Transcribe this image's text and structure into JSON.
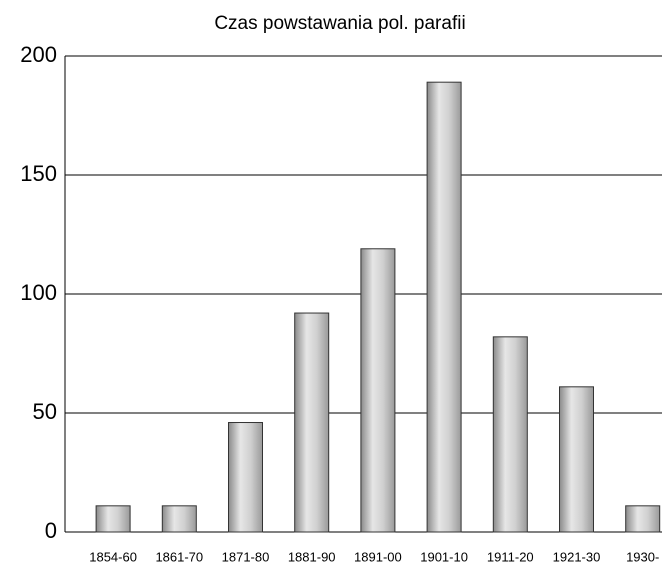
{
  "chart_data": {
    "type": "bar",
    "title": "Czas powstawania pol. parafii",
    "categories": [
      "1854-60",
      "1861-70",
      "1871-80",
      "1881-90",
      "1891-00",
      "1901-10",
      "1911-20",
      "1921-30",
      "1930-"
    ],
    "values": [
      11,
      11,
      46,
      92,
      119,
      189,
      82,
      61,
      11
    ],
    "color": "#c8c8c8",
    "ylim": [
      0,
      200
    ],
    "yticks": [
      0,
      50,
      100,
      150,
      200
    ],
    "grid": true
  }
}
